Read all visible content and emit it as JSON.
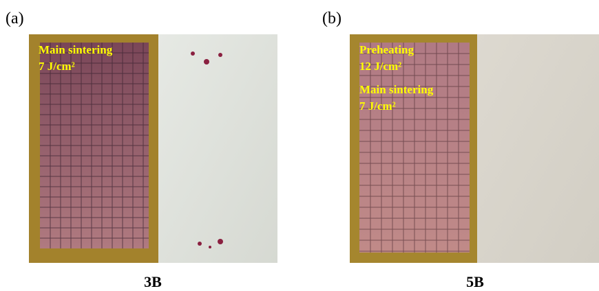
{
  "panels": [
    {
      "label": "(a)",
      "annotations": [
        "Main sintering",
        "7 J/cm²"
      ],
      "caption": "3B"
    },
    {
      "label": "(b)",
      "annotations": [
        "Preheating",
        "12 J/cm²",
        "Main sintering",
        "7 J/cm²"
      ],
      "caption": "5B"
    }
  ]
}
